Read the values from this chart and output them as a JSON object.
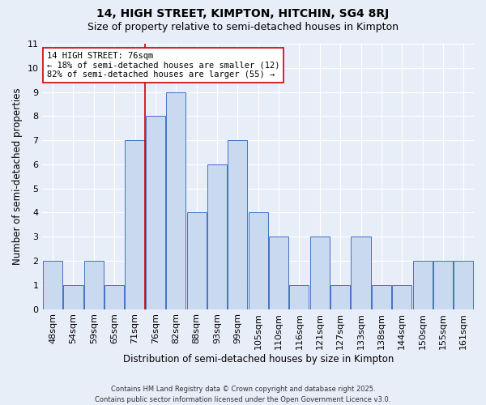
{
  "title": "14, HIGH STREET, KIMPTON, HITCHIN, SG4 8RJ",
  "subtitle": "Size of property relative to semi-detached houses in Kimpton",
  "categories": [
    "48sqm",
    "54sqm",
    "59sqm",
    "65sqm",
    "71sqm",
    "76sqm",
    "82sqm",
    "88sqm",
    "93sqm",
    "99sqm",
    "105sqm",
    "110sqm",
    "116sqm",
    "121sqm",
    "127sqm",
    "133sqm",
    "138sqm",
    "144sqm",
    "150sqm",
    "155sqm",
    "161sqm"
  ],
  "values": [
    2,
    1,
    2,
    1,
    7,
    8,
    9,
    4,
    6,
    7,
    4,
    3,
    1,
    3,
    1,
    3,
    1,
    1,
    2,
    2,
    2
  ],
  "bar_color": "#c9d9f0",
  "bar_edge_color": "#4472c4",
  "ylabel": "Number of semi-detached properties",
  "xlabel": "Distribution of semi-detached houses by size in Kimpton",
  "ylim": [
    0,
    11
  ],
  "yticks": [
    0,
    1,
    2,
    3,
    4,
    5,
    6,
    7,
    8,
    9,
    10,
    11
  ],
  "property_index": 5,
  "property_label": "14 HIGH STREET: 76sqm",
  "annotation_smaller": "← 18% of semi-detached houses are smaller (12)",
  "annotation_larger": "82% of semi-detached houses are larger (55) →",
  "vline_color": "#cc0000",
  "annotation_box_color": "#ffffff",
  "annotation_box_edge": "#cc0000",
  "footer": "Contains HM Land Registry data © Crown copyright and database right 2025.\nContains public sector information licensed under the Open Government Licence v3.0.",
  "background_color": "#e8eef8",
  "title_fontsize": 10,
  "subtitle_fontsize": 9,
  "axis_label_fontsize": 8.5,
  "tick_fontsize": 8,
  "annotation_fontsize": 7.5,
  "footer_fontsize": 6
}
